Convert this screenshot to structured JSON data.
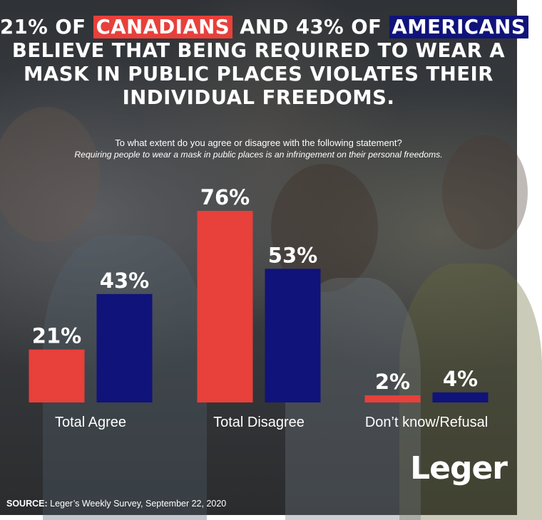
{
  "headline": {
    "line1_a": "21% OF ",
    "line1_canadians": "CANADIANS",
    "line1_b": " AND 43% OF ",
    "line1_americans": "AMERICANS",
    "line2": "BELIEVE THAT BEING REQUIRED TO WEAR A",
    "line3": "MASK IN PUBLIC PLACES VIOLATES THEIR",
    "line4": "INDIVIDUAL FREEDOMS."
  },
  "question": {
    "text": "To what extent do you agree or disagree with the following statement?",
    "statement": "Requiring people to wear a mask in public places is an infringement on their personal freedoms."
  },
  "colors": {
    "canadians": "#e8403b",
    "americans": "#10137a"
  },
  "chart_data": {
    "type": "bar",
    "categories": [
      "Total Agree",
      "Total Disagree",
      "Don’t know/Refusal"
    ],
    "series": [
      {
        "name": "CANADIANS",
        "values": [
          21,
          76,
          2
        ],
        "labels": [
          "21%",
          "76%",
          "2%"
        ]
      },
      {
        "name": "AMERICANS",
        "values": [
          43,
          53,
          4
        ],
        "labels": [
          "43%",
          "53%",
          "4%"
        ]
      }
    ],
    "ylim": [
      0,
      76
    ],
    "grid": false,
    "legend": "none"
  },
  "brand": {
    "logo_text": "Leger"
  },
  "source": {
    "label": "SOURCE:",
    "text": " Leger’s Weekly Survey, September 22, 2020"
  }
}
